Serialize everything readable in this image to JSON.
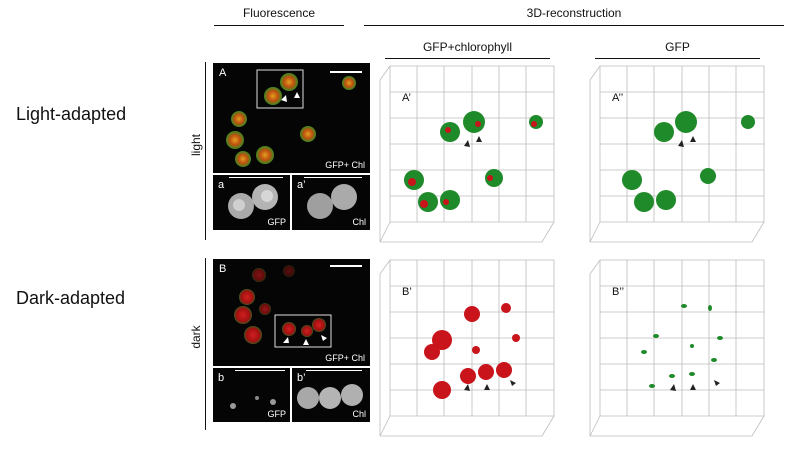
{
  "headers": {
    "fluorescence": "Fluorescence",
    "reconstruction": "3D-reconstruction",
    "gfp_chl": "GFP+chlorophyll",
    "gfp": "GFP"
  },
  "rows": {
    "light": {
      "label": "Light-adapted",
      "condition": "light"
    },
    "dark": {
      "label": "Dark-adapted",
      "condition": "dark"
    }
  },
  "panels": {
    "A": "A",
    "A1": "A’",
    "A2": "A’’",
    "B": "B",
    "B1": "B’",
    "B2": "B’’",
    "a": "a",
    "a1": "a’",
    "b": "b",
    "b1": "b’"
  },
  "channel_labels": {
    "merge": "GFP+ Chl",
    "gfp": "GFP",
    "chl": "Chl"
  },
  "colors": {
    "green": "#1f8a2a",
    "red": "#c8141a",
    "grid": "#bcbcbc"
  }
}
